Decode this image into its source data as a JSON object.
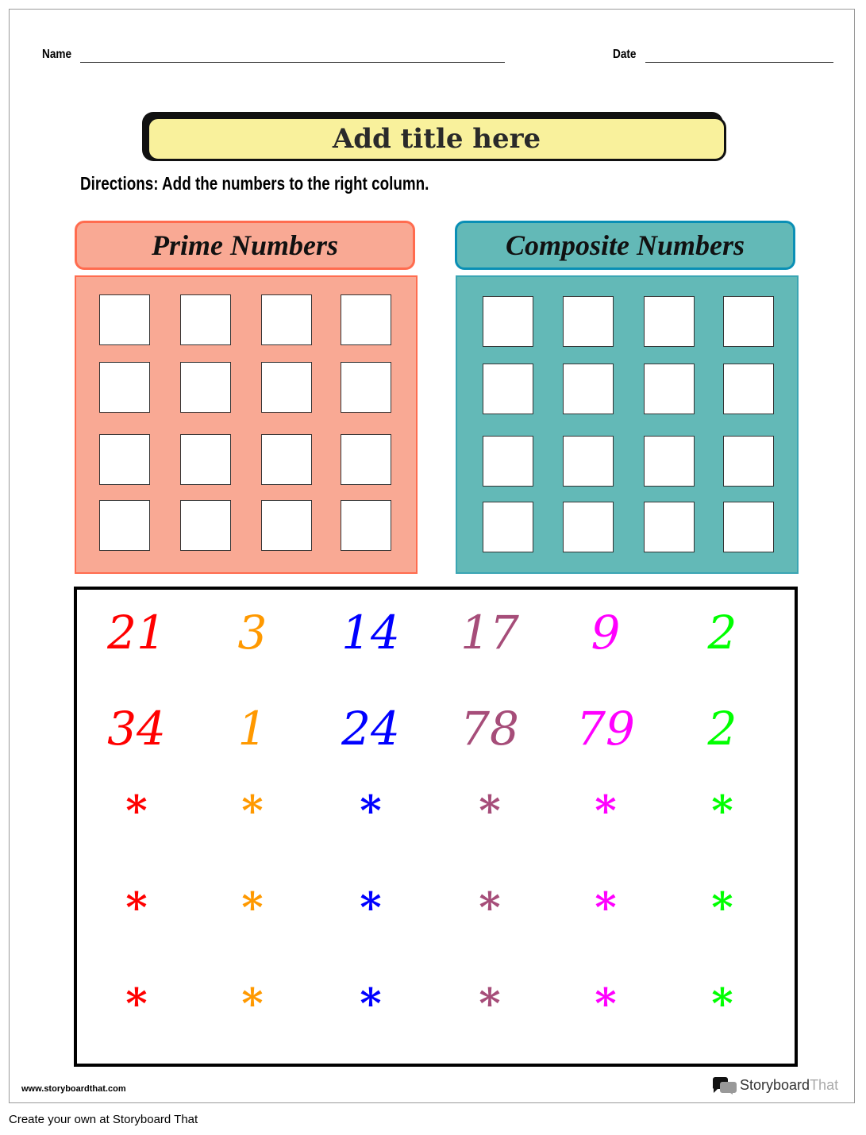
{
  "header": {
    "name_label": "Name",
    "date_label": "Date"
  },
  "title": "Add title here",
  "directions": "Directions: Add the numbers to the right column.",
  "columns": [
    {
      "label": "Prime Numbers",
      "fill": "#f9a994",
      "border": "#ff6c4f"
    },
    {
      "label": "Composite Numbers",
      "fill": "#63b9b7",
      "border": "#0a8fb5"
    }
  ],
  "numbers": {
    "colors": [
      "#ff0000",
      "#ff9900",
      "#0000ff",
      "#a64d79",
      "#ff00ff",
      "#00ff00"
    ],
    "rows": [
      [
        "21",
        "3",
        "14",
        "17",
        "9",
        "2"
      ],
      [
        "34",
        "1",
        "24",
        "78",
        "79",
        "2"
      ],
      [
        "*",
        "*",
        "*",
        "*",
        "*",
        "*"
      ],
      [
        "*",
        "*",
        "*",
        "*",
        "*",
        "*"
      ],
      [
        "*",
        "*",
        "*",
        "*",
        "*",
        "*"
      ]
    ]
  },
  "footer": {
    "url": "www.storyboardthat.com",
    "logo_a": "Storyboard",
    "logo_b": "That",
    "caption": "Create your own at Storyboard That"
  }
}
